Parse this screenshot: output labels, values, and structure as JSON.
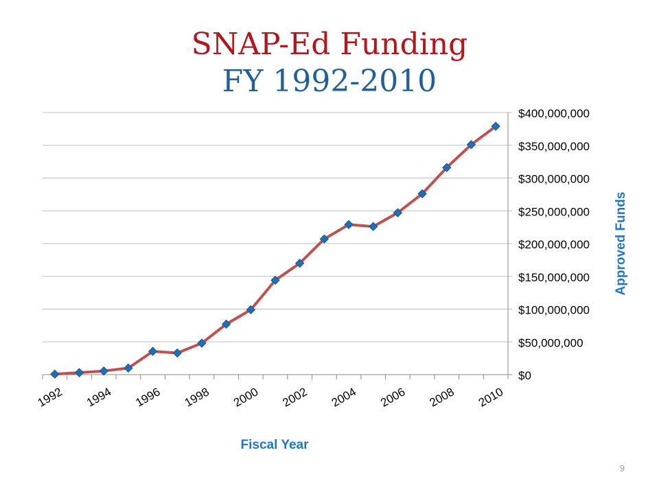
{
  "slide": {
    "title": "SNAP-Ed Funding",
    "subtitle": "FY 1992-2010",
    "page_number": "9"
  },
  "colors": {
    "title": "#b3171b",
    "subtitle": "#1f5f9a",
    "line": "#c0504d",
    "marker": "#1f6fb5",
    "axis_label": "#1f77c4",
    "grid": "#bdbdbd"
  },
  "chart_data": {
    "type": "line",
    "x": [
      1992,
      1993,
      1994,
      1995,
      1996,
      1997,
      1998,
      1999,
      2000,
      2001,
      2002,
      2003,
      2004,
      2005,
      2006,
      2007,
      2008,
      2009,
      2010
    ],
    "x_tick_labels": [
      "1992",
      "1994",
      "1996",
      "1998",
      "2000",
      "2002",
      "2004",
      "2006",
      "2008",
      "2010"
    ],
    "values": [
      700000,
      3000000,
      5500000,
      10000000,
      35500000,
      33000000,
      48000000,
      77000000,
      99000000,
      144000000,
      170000000,
      207000000,
      229000000,
      226000000,
      247000000,
      276000000,
      316000000,
      351000000,
      379000000
    ],
    "y_tick_labels": [
      "$0",
      "$50,000,000",
      "$100,000,000",
      "$150,000,000",
      "$200,000,000",
      "$250,000,000",
      "$300,000,000",
      "$350,000,000",
      "$400,000,000"
    ],
    "ylim": [
      0,
      400000000
    ],
    "xlabel": "Fiscal Year",
    "ylabel": "Approved Funds",
    "y_axis_side": "right",
    "grid": true,
    "legend": "none"
  }
}
